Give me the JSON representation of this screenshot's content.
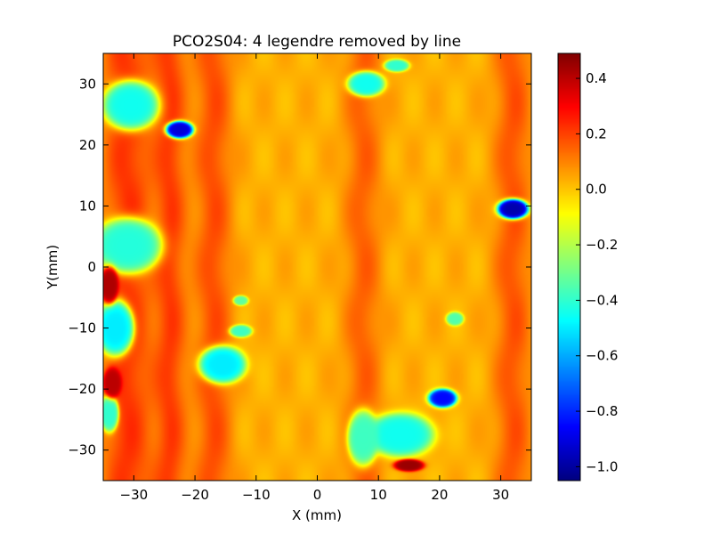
{
  "chart_data": {
    "type": "heatmap",
    "title": "PCO2S04: 4 legendre removed by line",
    "xlabel": "X (mm)",
    "ylabel": "Y(mm)",
    "xlim": [
      -35,
      35
    ],
    "ylim": [
      -35,
      35
    ],
    "x_ticks": [
      -30,
      -20,
      -10,
      0,
      10,
      20,
      30
    ],
    "x_tick_labels": [
      "−30",
      "−20",
      "−10",
      "0",
      "10",
      "20",
      "30"
    ],
    "y_ticks": [
      -30,
      -20,
      -10,
      0,
      10,
      20,
      30
    ],
    "y_tick_labels": [
      "−30",
      "−20",
      "−10",
      "0",
      "10",
      "20",
      "30"
    ],
    "colormap": "jet",
    "colorbar": {
      "vmin": -1.05,
      "vmax": 0.49,
      "ticks": [
        0.4,
        0.2,
        0.0,
        -0.2,
        -0.4,
        -0.6,
        -0.8,
        -1.0
      ],
      "tick_labels": [
        "0.4",
        "0.2",
        "0.0",
        "−0.2",
        "−0.4",
        "−0.6",
        "−0.8",
        "−1.0"
      ]
    },
    "background_value": 0.03,
    "vertical_bands": [
      {
        "x": -31,
        "width": 4,
        "value": 0.22
      },
      {
        "x": -24,
        "width": 2.5,
        "value": 0.2
      },
      {
        "x": -17,
        "width": 3,
        "value": 0.18
      },
      {
        "x": 7.5,
        "width": 3,
        "value": 0.15
      },
      {
        "x": 32,
        "width": 3,
        "value": 0.17
      }
    ],
    "features": [
      {
        "x": -30.5,
        "y": 26.5,
        "rx": 4.5,
        "ry": 4,
        "value": -0.45
      },
      {
        "x": -22.5,
        "y": 22.5,
        "rx": 2.2,
        "ry": 1.4,
        "value": -0.92
      },
      {
        "x": -31,
        "y": 3.5,
        "rx": 5.5,
        "ry": 4.5,
        "value": -0.42
      },
      {
        "x": -33,
        "y": -10,
        "rx": 3,
        "ry": 4.5,
        "value": -0.5
      },
      {
        "x": -15.5,
        "y": -16,
        "rx": 3.8,
        "ry": 3,
        "value": -0.5
      },
      {
        "x": -12.5,
        "y": -10.5,
        "rx": 1.8,
        "ry": 1,
        "value": -0.38
      },
      {
        "x": -12.5,
        "y": -5.5,
        "rx": 1.2,
        "ry": 0.8,
        "value": -0.33
      },
      {
        "x": 8,
        "y": 30,
        "rx": 3,
        "ry": 2,
        "value": -0.45
      },
      {
        "x": 13,
        "y": 33,
        "rx": 2,
        "ry": 1,
        "value": -0.4
      },
      {
        "x": 32,
        "y": 9.5,
        "rx": 2.5,
        "ry": 1.6,
        "value": -0.98
      },
      {
        "x": 22.5,
        "y": -8.5,
        "rx": 1.4,
        "ry": 1.1,
        "value": -0.35
      },
      {
        "x": 20.5,
        "y": -21.5,
        "rx": 2.3,
        "ry": 1.5,
        "value": -0.85
      },
      {
        "x": 13.5,
        "y": -27.5,
        "rx": 5.5,
        "ry": 3.5,
        "value": -0.45
      },
      {
        "x": 7.5,
        "y": -28,
        "rx": 2.5,
        "ry": 4.5,
        "value": -0.38
      },
      {
        "x": -34,
        "y": -24,
        "rx": 1.5,
        "ry": 3,
        "value": -0.4
      },
      {
        "x": 15,
        "y": -32.5,
        "rx": 2.5,
        "ry": 1,
        "value": 0.45
      },
      {
        "x": -34,
        "y": -3,
        "rx": 1.5,
        "ry": 3,
        "value": 0.42
      },
      {
        "x": -33.5,
        "y": -19,
        "rx": 1.5,
        "ry": 2.5,
        "value": 0.4
      }
    ]
  }
}
